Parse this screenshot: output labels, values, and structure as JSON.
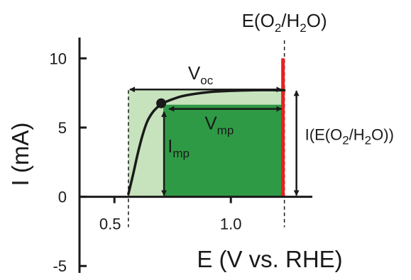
{
  "chart_data": {
    "type": "line",
    "xlabel": "E (V vs. RHE)",
    "ylabel": "I (mA)",
    "xlim": [
      0.35,
      1.35
    ],
    "ylim": [
      -5.5,
      11.5
    ],
    "x_ticks": [
      {
        "value": 0.5,
        "label": "0.5"
      },
      {
        "value": 1.0,
        "label": "1.0"
      }
    ],
    "y_ticks": [
      {
        "value": -5,
        "label": "-5"
      },
      {
        "value": 0,
        "label": "0"
      },
      {
        "value": 5,
        "label": "5"
      },
      {
        "value": 10,
        "label": "10"
      }
    ],
    "series": [
      {
        "x": [
          0.56,
          0.58,
          0.6,
          0.62,
          0.64,
          0.66,
          0.68,
          0.7,
          0.72,
          0.75,
          0.8,
          0.9,
          1.0,
          1.1,
          1.2,
          1.23
        ],
        "y": [
          0.2,
          1.6,
          3.1,
          4.4,
          5.4,
          6.0,
          6.4,
          6.65,
          6.85,
          7.05,
          7.3,
          7.55,
          7.65,
          7.7,
          7.7,
          7.7
        ]
      }
    ],
    "onset_potential": 0.56,
    "reference_potential": 1.23,
    "max_power_point": {
      "x": 0.71,
      "y": 6.65
    },
    "current_at_reference": 7.7,
    "red_bar_top": 10,
    "annotations": {
      "reference_label_pre": "E(O",
      "reference_label_sub1": "2",
      "reference_label_mid": "/H",
      "reference_label_sub2": "2",
      "reference_label_post": "O)",
      "voc_main": "V",
      "voc_sub": "oc",
      "vmp_main": "V",
      "vmp_sub": "mp",
      "imp_main": "I",
      "imp_sub": "mp",
      "iref_pre": "I(E(O",
      "iref_sub1": "2",
      "iref_mid": "/H",
      "iref_sub2": "2",
      "iref_post": "O))"
    },
    "colors": {
      "light_region": "#c7e3bd",
      "dark_region": "#2f9a45",
      "reference_bar": "#e8211f",
      "curve": "#1a1a1a"
    }
  }
}
